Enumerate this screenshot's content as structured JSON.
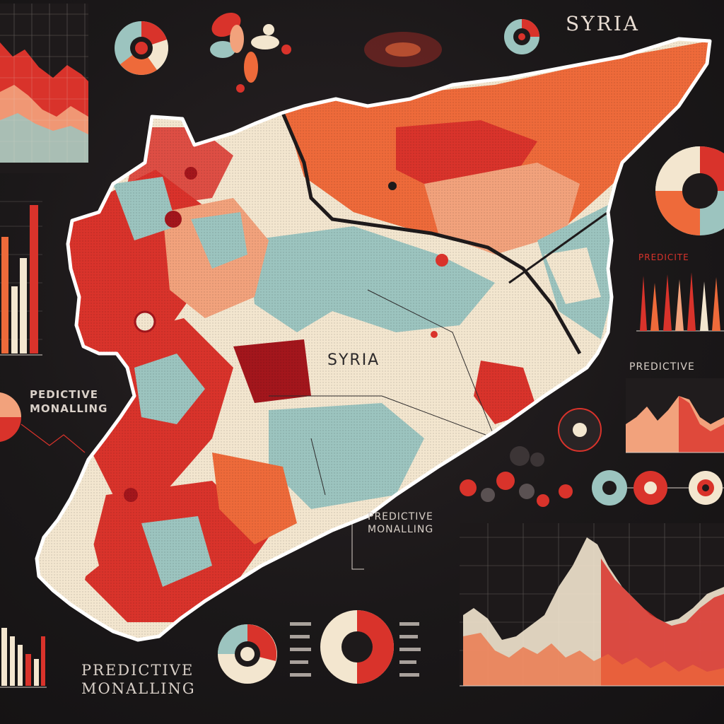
{
  "title_label": "SYRIA",
  "map_label": "SYRIA",
  "predictive_left": [
    "PEDICTIVE",
    "MONALLING"
  ],
  "predictive_right_top": "PREDICITE",
  "predictive_right_mid": "PREDICTIVE",
  "predictive_center": [
    "PREDICTIVE",
    "MONALLING"
  ],
  "predictive_bottom": [
    "PREDICTIVE",
    "MONALLING"
  ],
  "colors": {
    "background": "#1a1718",
    "red": "#d9332b",
    "orange": "#ee6a3a",
    "peach": "#f2a27c",
    "cream": "#f3e6cf",
    "teal": "#9cc4bf",
    "dark_red": "#a3161c",
    "map_outline": "#ffffff"
  },
  "icons": [
    "pie-chart-icon",
    "donut-chart-icon",
    "flower-chart-icon",
    "bar-chart-icon",
    "area-chart-icon",
    "histogram-icon"
  ]
}
